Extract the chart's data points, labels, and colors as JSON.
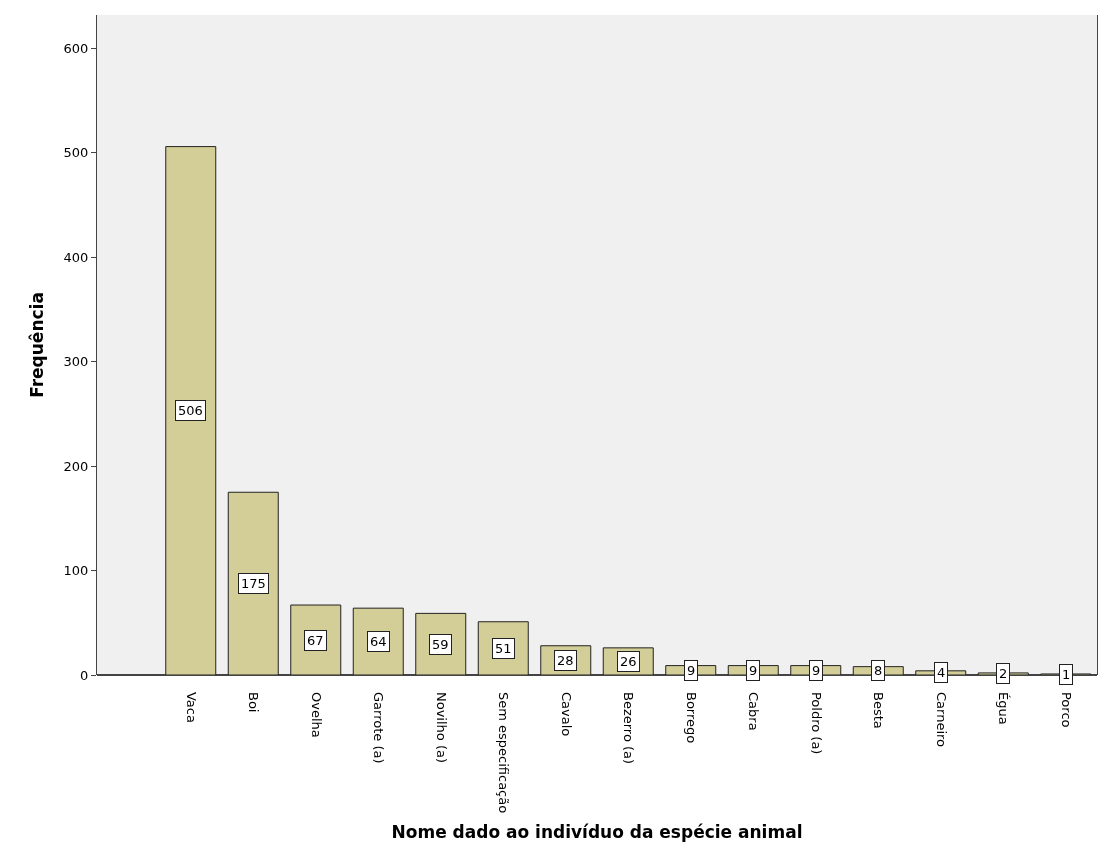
{
  "chart_data": {
    "type": "bar",
    "xlabel": "Nome dado ao indivíduo da espécie animal",
    "ylabel": "Frequência",
    "categories": [
      "Vaca",
      "Boi",
      "Ovelha",
      "Garrote (a)",
      "Novilho (a)",
      "Sem especificação",
      "Cavalo",
      "Bezerro (a)",
      "Borrego",
      "Cabra",
      "Poldro (a)",
      "Besta",
      "Carneiro",
      "Égua",
      "Porco"
    ],
    "values": [
      506,
      175,
      67,
      64,
      59,
      51,
      28,
      26,
      9,
      9,
      9,
      8,
      4,
      2,
      1
    ],
    "color": "#d3ce97",
    "ylim": [
      0,
      632
    ],
    "yticks": [
      0,
      100,
      200,
      300,
      400,
      500,
      600
    ],
    "grid": false,
    "legend": false,
    "data_labels": true
  }
}
